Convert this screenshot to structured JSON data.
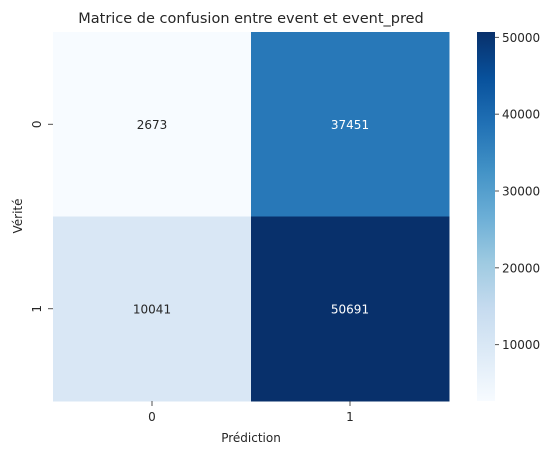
{
  "chart_data": {
    "type": "heatmap",
    "title": "Matrice de confusion entre event et event_pred",
    "xlabel": "Prédiction",
    "ylabel": "Vérité",
    "x_categories": [
      "0",
      "1"
    ],
    "y_categories": [
      "0",
      "1"
    ],
    "values": [
      [
        2673,
        37451
      ],
      [
        10041,
        50691
      ]
    ],
    "colormap": "Blues",
    "color_range": [
      2673,
      50691
    ],
    "colorbar_ticks": [
      "10000",
      "20000",
      "30000",
      "40000",
      "50000"
    ],
    "colorbar_tick_values": [
      10000,
      20000,
      30000,
      40000,
      50000
    ],
    "colors": {
      "low": "#f7fbff",
      "high": "#08306b",
      "light_text": "#ffffff",
      "dark_text": "#262626"
    }
  }
}
